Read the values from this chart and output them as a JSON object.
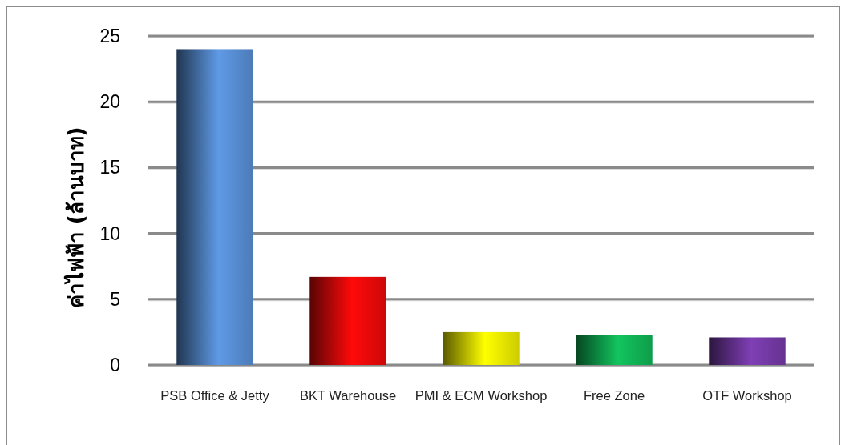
{
  "chart_data": {
    "type": "bar",
    "ylabel": "ค่าไฟฟ้า (ล้านบาท)",
    "categories": [
      "PSB Office & Jetty",
      "BKT Warehouse",
      "PMI & ECM Workshop",
      "Free Zone",
      "OTF Workshop"
    ],
    "values": [
      24,
      6.7,
      2.5,
      2.3,
      2.1
    ],
    "colors": [
      "#5f9ae6",
      "#ff0a0a",
      "#ffff00",
      "#12c45e",
      "#7f3fb5"
    ],
    "ylim": [
      0,
      25
    ],
    "yticks": [
      0,
      5,
      10,
      15,
      20,
      25
    ],
    "grid": "y"
  }
}
